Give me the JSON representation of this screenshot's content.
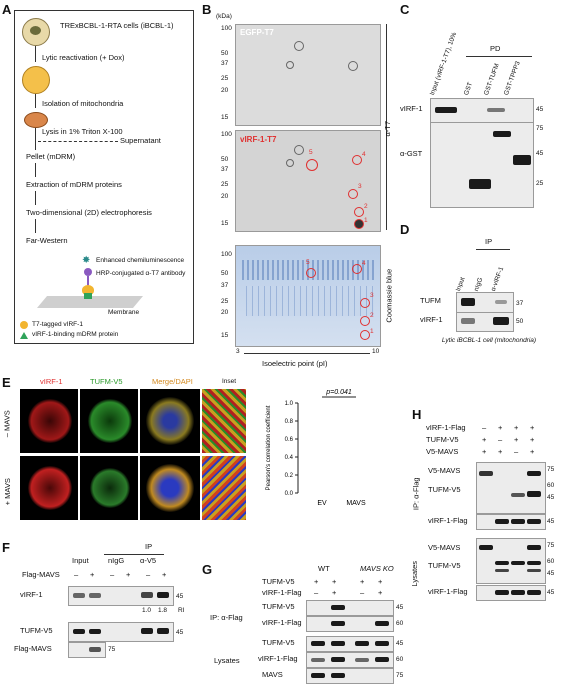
{
  "panels": {
    "A": "A",
    "B": "B",
    "C": "C",
    "D": "D",
    "E": "E",
    "F": "F",
    "G": "G",
    "H": "H"
  },
  "A": {
    "steps": [
      "TRExBCBL-1-RTA cells (iBCBL-1)",
      "Lytic reactivation (+ Dox)",
      "Isolation of mitochondria",
      "Lysis in 1% Triton X-100",
      "Supernatant",
      "Pellet (mDRM)",
      "Extraction of mDRM proteins",
      "Two-dimensional (2D) electrophoresis",
      "Far-Western"
    ],
    "legend": [
      "Enhanced chemiluminescence",
      "HRP-conjugated α-T7 antibody",
      "Membrane",
      "T7-tagged vIRF-1",
      "vIRF-1-binding mDRM protein"
    ]
  },
  "B": {
    "kda": "(kDa)",
    "markers": [
      "100",
      "50",
      "37",
      "25",
      "20",
      "15"
    ],
    "top_label": "EGFP-T7",
    "mid_label": "vIRF-1-T7",
    "antibody": "α-T7",
    "stain": "Coomassie blue",
    "spots": [
      "1",
      "2",
      "3",
      "4",
      "5"
    ],
    "ph_low": "3",
    "ph_high": "10",
    "axis": "Isoelectric point (pI)"
  },
  "C": {
    "lanes": [
      "Input (vIRF-1-T7), 10%",
      "GST",
      "GST-TUFM",
      "GST-TPPP3"
    ],
    "pd": "PD",
    "rows": [
      "vIRF-1",
      "α-GST"
    ],
    "mw": [
      "45",
      "75",
      "45",
      "25"
    ]
  },
  "D": {
    "ip": "IP",
    "lanes": [
      "Input",
      "nIgG",
      "α-vIRF-1"
    ],
    "rows": [
      "TUFM",
      "vIRF-1"
    ],
    "mw": [
      "37",
      "50"
    ],
    "caption": "Lytic iBCBL-1 cell (mitochondria)"
  },
  "E": {
    "cols": [
      "vIRF-1",
      "TUFM-V5",
      "Merge/DAPI",
      "Inset"
    ],
    "rows": [
      "– MAVS",
      "+ MAVS"
    ],
    "p": "p=0.041",
    "ylabel": "Pearson's correlation coefficient",
    "yticks": [
      "1.0",
      "0.8",
      "0.6",
      "0.4",
      "0.2",
      "0.0"
    ],
    "groups": [
      "EV",
      "MAVS"
    ]
  },
  "F": {
    "ip": "IP",
    "lanes": [
      "Input",
      "nIgG",
      "α-V5"
    ],
    "cond": "Flag-MAVS",
    "signs": [
      "–",
      "+",
      "–",
      "+",
      "–",
      "+"
    ],
    "rows": [
      "vIRF-1",
      "TUFM-V5",
      "Flag-MAVS"
    ],
    "mw": [
      "45",
      "45",
      "75"
    ],
    "ri": [
      "1.0",
      "1.8",
      "RI"
    ]
  },
  "G": {
    "wt": "WT",
    "ko": "MAVS KO",
    "conds": [
      "TUFM-V5",
      "vIRF-1-Flag"
    ],
    "signs1": [
      "+",
      "+",
      "+",
      "+"
    ],
    "signs2": [
      "–",
      "+",
      "–",
      "+"
    ],
    "ip": "IP: α-Flag",
    "lys": "Lysates",
    "rows_ip": [
      "TUFM-V5",
      "vIRF-1-Flag"
    ],
    "rows_lys": [
      "TUFM-V5",
      "vIRF-1-Flag",
      "MAVS"
    ],
    "mw": [
      "45",
      "60",
      "45",
      "60",
      "75"
    ]
  },
  "H": {
    "conds": [
      "vIRF-1-Flag",
      "TUFM-V5",
      "V5-MAVS"
    ],
    "s1": [
      "–",
      "+",
      "+",
      "+"
    ],
    "s2": [
      "+",
      "–",
      "+",
      "+"
    ],
    "s3": [
      "+",
      "+",
      "–",
      "+"
    ],
    "ip": "IP: α-Flag",
    "lys": "Lysates",
    "rows_ip": [
      "V5-MAVS",
      "TUFM-V5",
      "vIRF-1-Flag"
    ],
    "rows_lys": [
      "V5-MAVS",
      "TUFM-V5",
      "vIRF-1-Flag"
    ],
    "mw": [
      "75",
      "60",
      "45",
      "45",
      "75",
      "60",
      "45",
      "45"
    ]
  }
}
